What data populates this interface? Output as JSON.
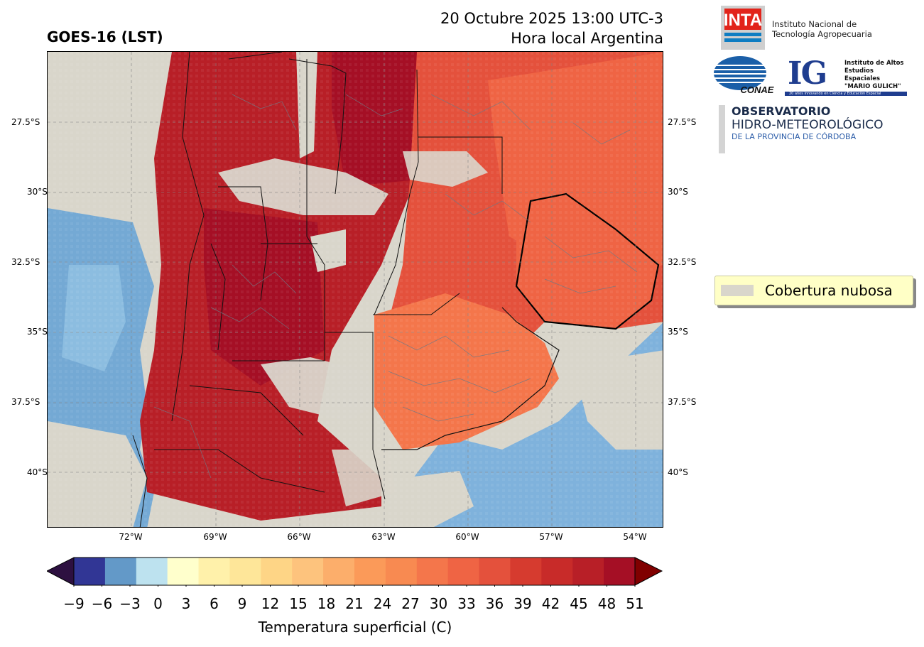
{
  "header": {
    "title_left": "GOES-16 (LST)",
    "title_right_line1": "20 Octubre 2025 13:00 UTC-3",
    "title_right_line2": "Hora local Argentina"
  },
  "map": {
    "lat_labels": [
      "27.5°S",
      "30°S",
      "32.5°S",
      "35°S",
      "37.5°S",
      "40°S"
    ],
    "lon_labels": [
      "72°W",
      "69°W",
      "66°W",
      "63°W",
      "60°W",
      "57°W",
      "54°W"
    ]
  },
  "legend": {
    "cloud_label": "Cobertura nubosa",
    "cloud_color": "#d9d6cb"
  },
  "colorbar": {
    "ticks": [
      "−9",
      "−6",
      "−3",
      "0",
      "3",
      "6",
      "9",
      "12",
      "15",
      "18",
      "21",
      "24",
      "27",
      "30",
      "33",
      "36",
      "39",
      "42",
      "45",
      "48",
      "51"
    ],
    "colors": [
      "#313695",
      "#6399c8",
      "#bde2ef",
      "#ffffcc",
      "#fff1aa",
      "#fee699",
      "#fed586",
      "#fdc37d",
      "#fcae6b",
      "#fb9a59",
      "#f88a51",
      "#f4764b",
      "#ef6444",
      "#e4513c",
      "#d63b2f",
      "#c82b29",
      "#b81f27",
      "#a50f25"
    ],
    "under_color": "#2d1040",
    "over_color": "#800000",
    "label": "Temperatura superficial (C)"
  },
  "logos": {
    "inta_mark": "INTA",
    "inta_line1": "Instituto Nacional de",
    "inta_line2": "Tecnología Agropecuaria",
    "conae_mark": "CONAE",
    "ig_mark": "IG",
    "ig_line1": "Instituto de Altos",
    "ig_line2": "Estudios Espaciales",
    "ig_line3": "\"MARIO GULICH\"",
    "ig_foot": "20 años innovando en Ciencia y Educación Espacial",
    "obs_line1": "OBSERVATORIO",
    "obs_line2": "HIDRO-METEOROLÓGICO",
    "obs_line3": "DE LA PROVINCIA DE CÓRDOBA"
  }
}
